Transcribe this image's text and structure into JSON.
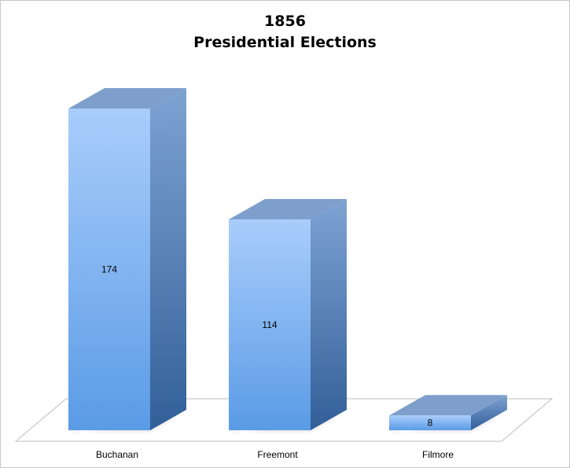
{
  "chart_data": {
    "type": "bar",
    "title_line1": "1856",
    "title_line2": "Presidential Elections",
    "categories": [
      "Buchanan",
      "Freemont",
      "Filmore"
    ],
    "values": [
      174,
      114,
      8
    ],
    "xlabel": "",
    "ylabel": "",
    "ylim": [
      0,
      174
    ],
    "grid": false,
    "legend": "none",
    "three_d": true,
    "colors": {
      "front_top": "#a9cdfb",
      "front_bottom": "#5a9be6",
      "side_top": "#7ea3d3",
      "side_bottom": "#325f98",
      "top_face": "#7e9fcc",
      "floor_line": "#bdbdbd",
      "frame_border": "#c8c8c8"
    }
  }
}
